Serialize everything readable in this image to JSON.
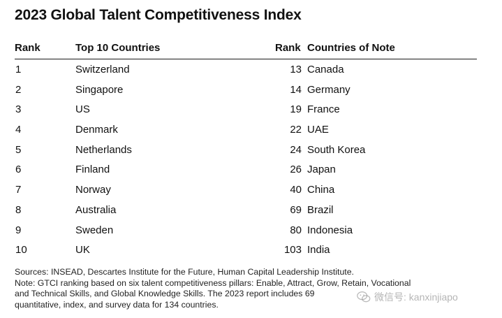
{
  "title": "2023 Global Talent Competitiveness Index",
  "table": {
    "headers": {
      "rank_left": "Rank",
      "top10": "Top 10 Countries",
      "rank_right": "Rank",
      "note": "Countries of Note"
    },
    "rows": [
      {
        "rank": "1",
        "country": "Switzerland",
        "rank2": "13",
        "country2": "Canada"
      },
      {
        "rank": "2",
        "country": "Singapore",
        "rank2": "14",
        "country2": "Germany"
      },
      {
        "rank": "3",
        "country": "US",
        "rank2": "19",
        "country2": "France"
      },
      {
        "rank": "4",
        "country": "Denmark",
        "rank2": "22",
        "country2": "UAE"
      },
      {
        "rank": "5",
        "country": "Netherlands",
        "rank2": "24",
        "country2": "South Korea"
      },
      {
        "rank": "6",
        "country": "Finland",
        "rank2": "26",
        "country2": "Japan"
      },
      {
        "rank": "7",
        "country": "Norway",
        "rank2": "40",
        "country2": "China"
      },
      {
        "rank": "8",
        "country": "Australia",
        "rank2": "69",
        "country2": "Brazil"
      },
      {
        "rank": "9",
        "country": "Sweden",
        "rank2": "80",
        "country2": "Indonesia"
      },
      {
        "rank": "10",
        "country": "UK",
        "rank2": "103",
        "country2": "India"
      }
    ]
  },
  "footnote": {
    "sources": "Sources: INSEAD, Descartes Institute for the Future, Human Capital Leadership Institute.",
    "note_line1": "Note: GTCI ranking based on six talent competitiveness pillars: Enable, Attract, Grow, Retain, Vocational",
    "note_line2": "and Technical Skills, and Global Knowledge Skills. The 2023 report includes 69",
    "note_line3": "quantitative, index, and survey data for 134 countries."
  },
  "watermark": {
    "text": "微信号: kanxinjiapo",
    "icon": "wechat-icon"
  }
}
